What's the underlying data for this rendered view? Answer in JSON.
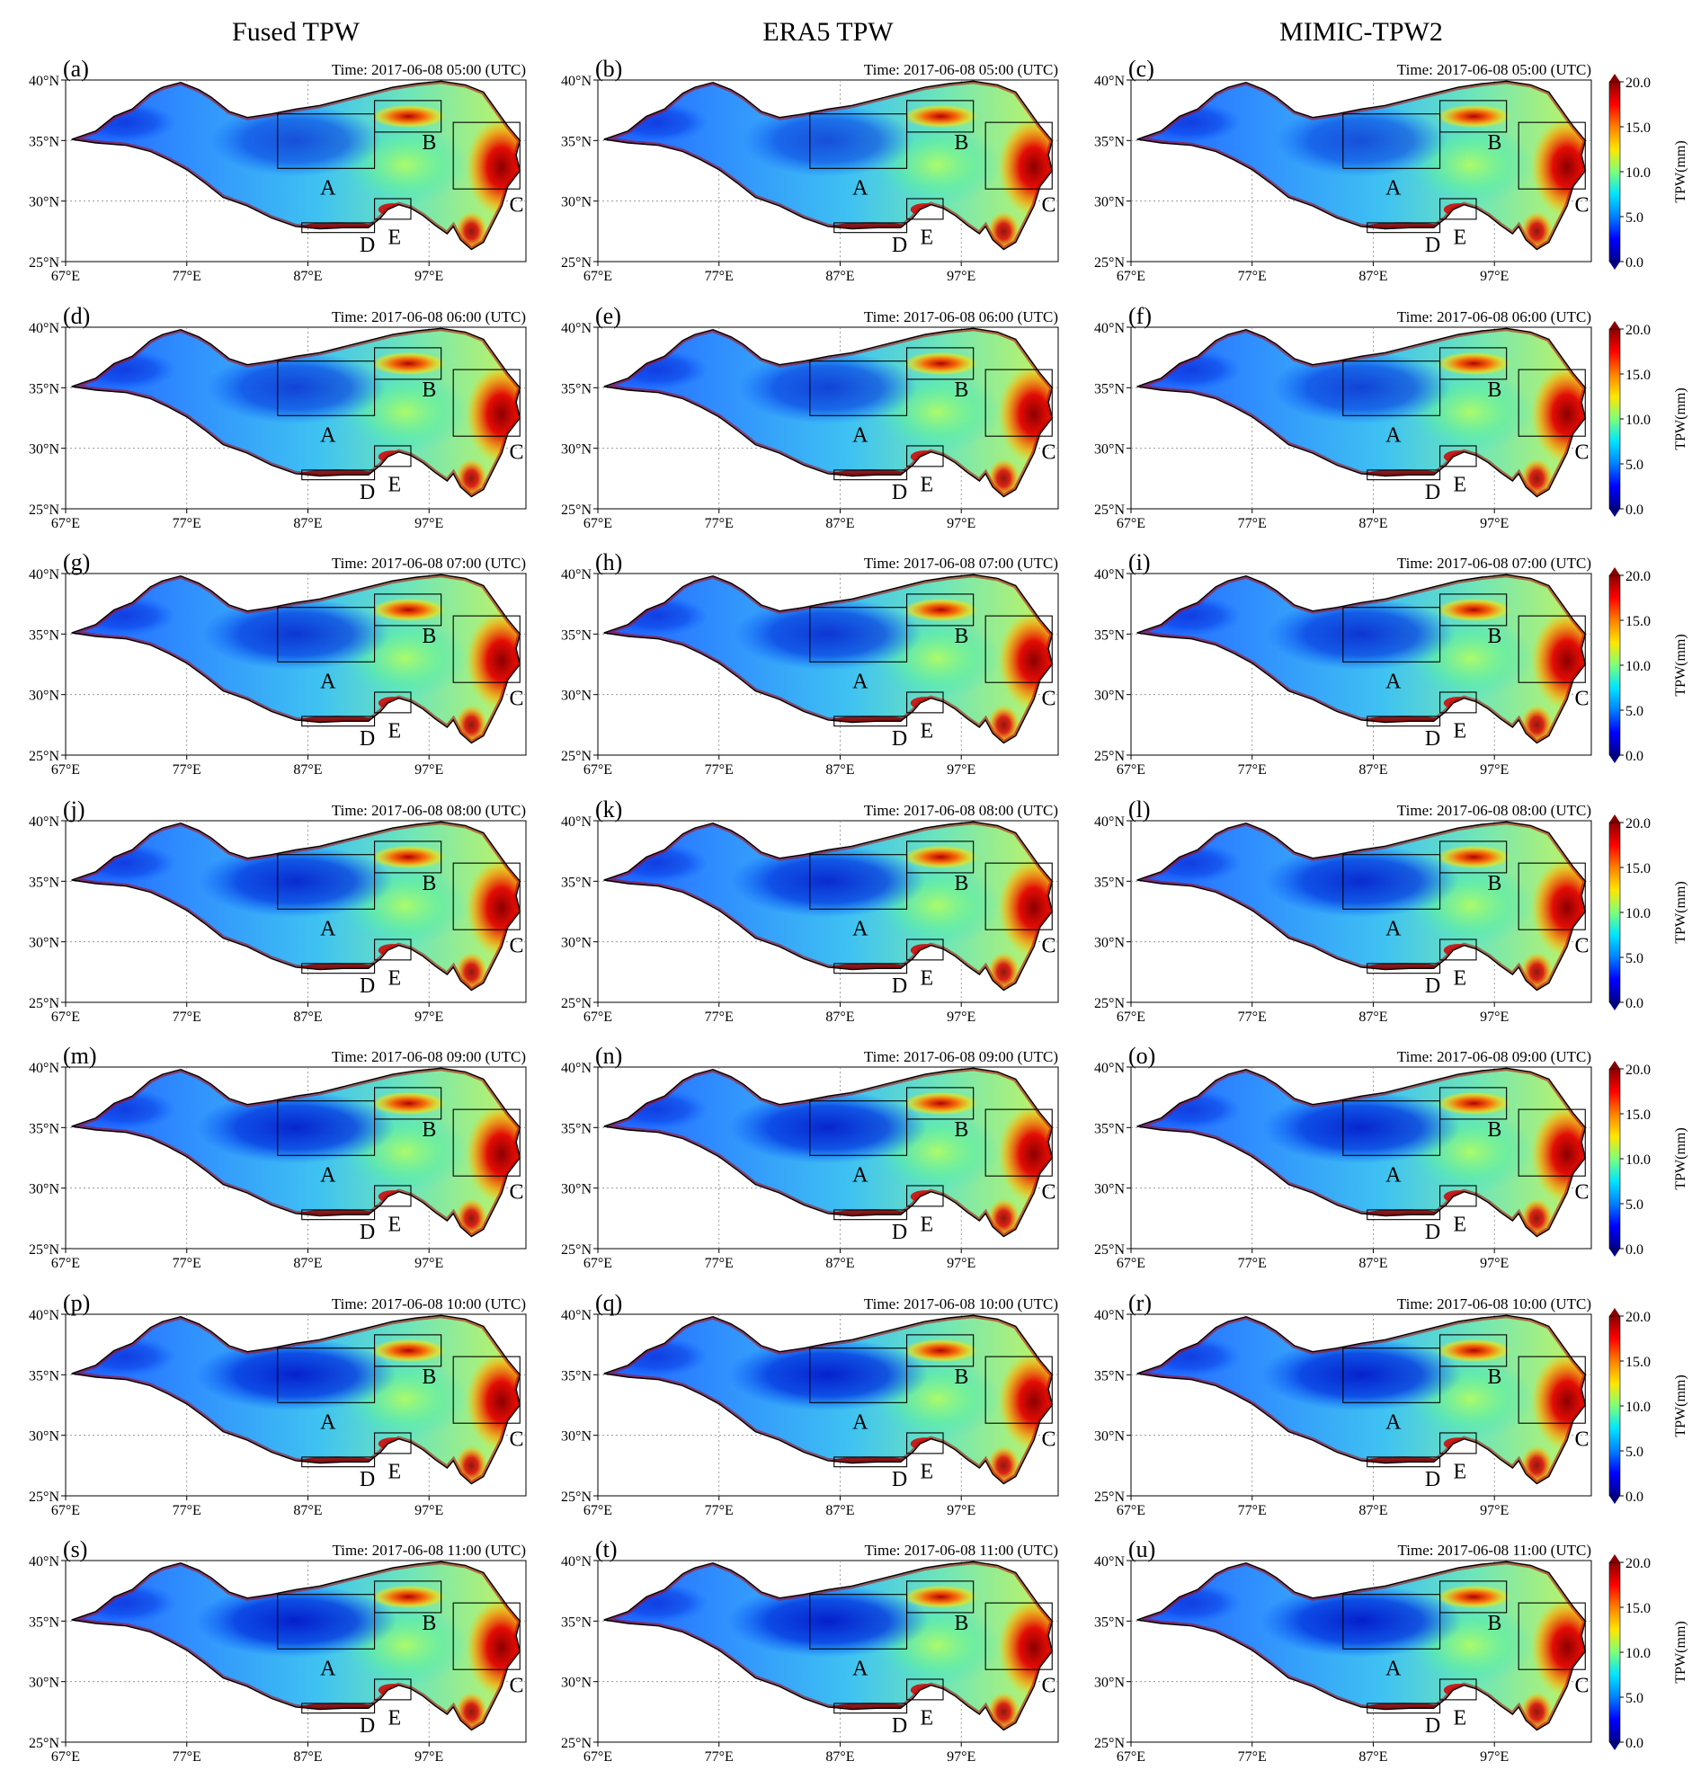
{
  "figure": {
    "column_titles": [
      "Fused TPW",
      "ERA5 TPW",
      "MIMIC-TPW2"
    ],
    "lat_ticks": [
      "40°N",
      "35°N",
      "30°N",
      "25°N"
    ],
    "lon_ticks": [
      "67°E",
      "77°E",
      "87°E",
      "97°E"
    ],
    "region_labels": [
      "A",
      "B",
      "C",
      "D",
      "E"
    ],
    "time_prefix": "Time:",
    "time_suffix": "(UTC)",
    "rows": [
      {
        "time": "2017-06-08 05:00",
        "panels": [
          "(a)",
          "(b)",
          "(c)"
        ]
      },
      {
        "time": "2017-06-08 06:00",
        "panels": [
          "(d)",
          "(e)",
          "(f)"
        ]
      },
      {
        "time": "2017-06-08 07:00",
        "panels": [
          "(g)",
          "(h)",
          "(i)"
        ]
      },
      {
        "time": "2017-06-08 08:00",
        "panels": [
          "(j)",
          "(k)",
          "(l)"
        ]
      },
      {
        "time": "2017-06-08 09:00",
        "panels": [
          "(m)",
          "(n)",
          "(o)"
        ]
      },
      {
        "time": "2017-06-08 10:00",
        "panels": [
          "(p)",
          "(q)",
          "(r)"
        ]
      },
      {
        "time": "2017-06-08 11:00",
        "panels": [
          "(s)",
          "(t)",
          "(u)"
        ]
      }
    ]
  },
  "map_data": {
    "lon_range": [
      67,
      105
    ],
    "lat_range": [
      25,
      40
    ],
    "boxes": {
      "A": {
        "lon": [
          84.5,
          92.5
        ],
        "lat": [
          32.7,
          37.2
        ]
      },
      "B": {
        "lon": [
          92.5,
          98.0
        ],
        "lat": [
          35.7,
          38.3
        ]
      },
      "C": {
        "lon": [
          99.0,
          104.5
        ],
        "lat": [
          31.0,
          36.5
        ]
      },
      "D": {
        "lon": [
          86.5,
          92.5
        ],
        "lat": [
          27.4,
          28.2
        ]
      },
      "E": {
        "lon": [
          92.5,
          95.5
        ],
        "lat": [
          28.5,
          30.2
        ]
      }
    },
    "dark_blue_intensity": [
      0.35,
      0.5,
      0.65,
      0.78,
      0.85,
      0.9,
      0.92
    ]
  },
  "colorbar": {
    "label": "TPW(mm)",
    "ticks": [
      "20.0",
      "15.0",
      "10.0",
      "5.0",
      "0.0"
    ],
    "range": [
      0,
      20
    ],
    "colors": [
      "#00008b",
      "#0000ff",
      "#0080ff",
      "#00e5ff",
      "#7dff7a",
      "#ffe600",
      "#ff8000",
      "#ff0000",
      "#8b0000"
    ]
  }
}
